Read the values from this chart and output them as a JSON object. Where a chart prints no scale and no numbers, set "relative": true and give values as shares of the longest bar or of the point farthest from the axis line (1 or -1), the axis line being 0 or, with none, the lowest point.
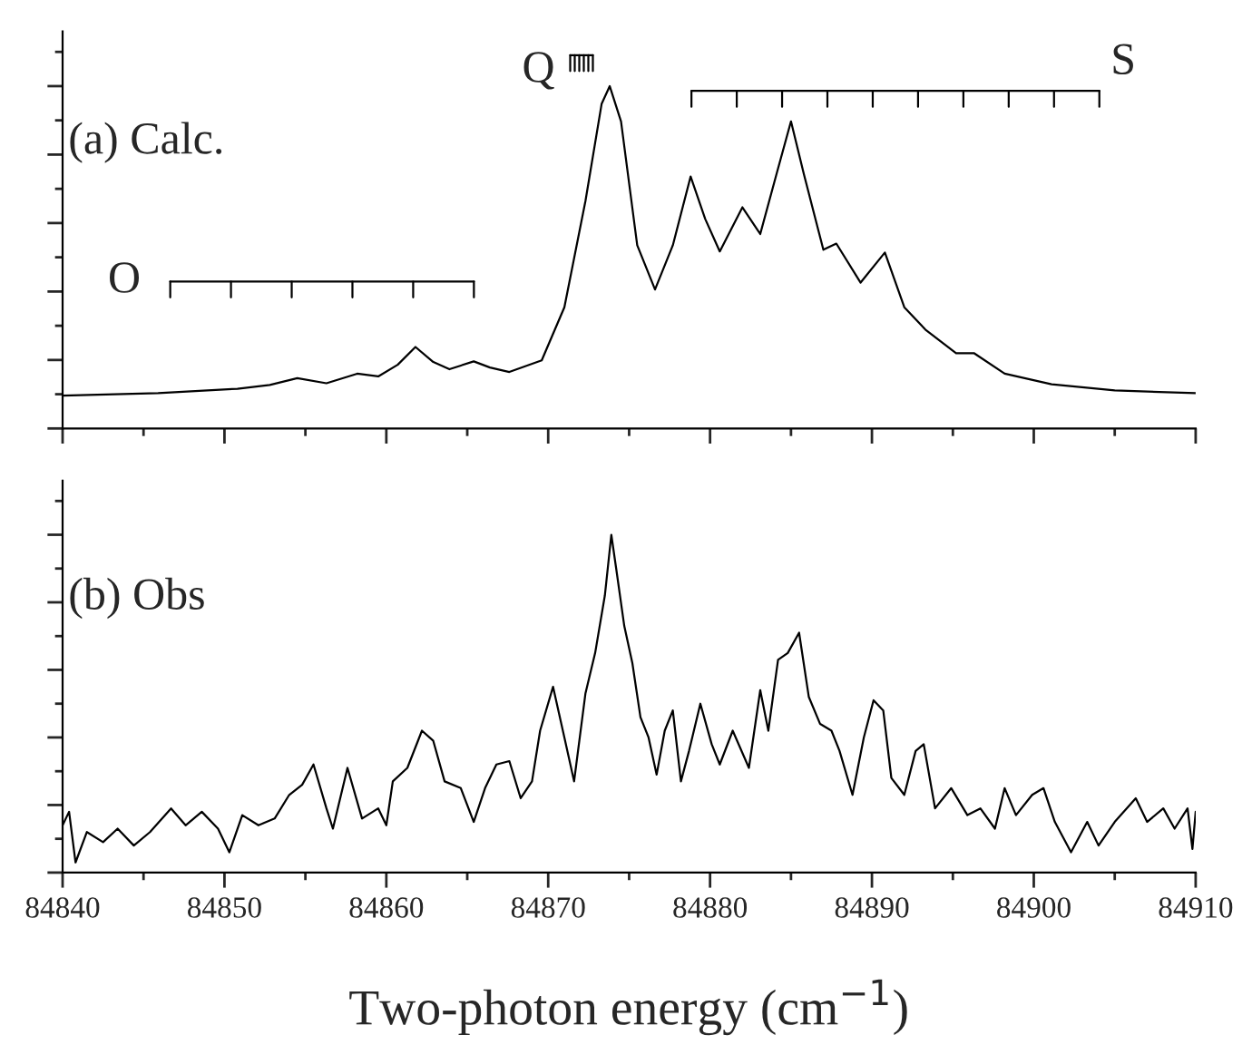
{
  "chart_data": [
    {
      "type": "line",
      "relative": true,
      "annotations": [
        "(a) Calc.",
        "O",
        "Q",
        "S"
      ],
      "xlim": [
        84840,
        84910
      ],
      "xticks": [
        84840,
        84850,
        84860,
        84870,
        84880,
        84890,
        84900,
        84910
      ],
      "tick_labels": false,
      "grid": false,
      "legend": false,
      "marker": "none",
      "line_style": "solid",
      "series": [
        {
          "color": "#000000",
          "x": [
            84840.0,
            84845.9,
            84850.8,
            84852.8,
            84854.5,
            84856.3,
            84858.2,
            84859.5,
            84860.7,
            84861.8,
            84862.9,
            84863.9,
            84865.4,
            84866.4,
            84867.6,
            84869.6,
            84871.0,
            84872.3,
            84873.3,
            84873.8,
            84874.5,
            84875.5,
            84876.6,
            84877.7,
            84878.8,
            84879.7,
            84880.6,
            84882.0,
            84883.1,
            84884.1,
            84885.0,
            84885.8,
            84887.0,
            84887.8,
            84889.3,
            84890.8,
            84892.0,
            84893.3,
            84895.2,
            84896.3,
            84898.2,
            84901.1,
            84905.0,
            84910.0
          ],
          "values": [
            0.096,
            0.103,
            0.116,
            0.127,
            0.147,
            0.132,
            0.16,
            0.152,
            0.186,
            0.238,
            0.194,
            0.173,
            0.196,
            0.178,
            0.165,
            0.199,
            0.354,
            0.664,
            0.948,
            1.0,
            0.897,
            0.535,
            0.406,
            0.535,
            0.736,
            0.612,
            0.517,
            0.646,
            0.568,
            0.742,
            0.897,
            0.742,
            0.522,
            0.54,
            0.426,
            0.514,
            0.354,
            0.289,
            0.22,
            0.22,
            0.16,
            0.129,
            0.111,
            0.103
          ]
        }
      ]
    },
    {
      "type": "line",
      "relative": true,
      "annotations": [
        "(b) Obs"
      ],
      "xlabel": "Two-photon energy (cm$^{−1}$)",
      "xlim": [
        84840,
        84910
      ],
      "xticks": [
        84840,
        84850,
        84860,
        84870,
        84880,
        84890,
        84900,
        84910
      ],
      "tick_labels": "x",
      "grid": false,
      "legend": false,
      "marker": "none",
      "line_style": "solid",
      "series": [
        {
          "color": "#000000",
          "x": [
            84840.0,
            84840.4,
            84840.8,
            84841.5,
            84842.5,
            84843.4,
            84844.4,
            84845.4,
            84846.7,
            84847.6,
            84848.6,
            84849.6,
            84850.3,
            84851.1,
            84852.1,
            84853.1,
            84854.0,
            84854.8,
            84855.5,
            84856.3,
            84856.7,
            84857.6,
            84858.5,
            84859.5,
            84860.0,
            84860.4,
            84861.3,
            84862.2,
            84862.9,
            84863.6,
            84864.6,
            84865.4,
            84866.1,
            84866.8,
            84867.6,
            84868.3,
            84869.0,
            84869.5,
            84870.3,
            84871.0,
            84871.6,
            84872.3,
            84872.9,
            84873.5,
            84873.9,
            84874.2,
            84874.7,
            84875.2,
            84875.7,
            84876.2,
            84876.7,
            84877.2,
            84877.7,
            84878.2,
            84878.7,
            84879.4,
            84880.1,
            84880.6,
            84881.4,
            84882.4,
            84883.1,
            84883.6,
            84884.2,
            84884.8,
            84885.5,
            84886.1,
            84886.8,
            84887.5,
            84888.0,
            84888.8,
            84889.5,
            84890.1,
            84890.7,
            84891.2,
            84892.0,
            84892.7,
            84893.2,
            84893.9,
            84894.9,
            84895.9,
            84896.7,
            84897.6,
            84898.2,
            84898.9,
            84899.9,
            84900.6,
            84901.3,
            84902.3,
            84903.3,
            84904.0,
            84905.0,
            84906.3,
            84907.0,
            84908.0,
            84908.7,
            84909.5,
            84909.8,
            84910.0
          ],
          "values": [
            0.14,
            0.18,
            0.03,
            0.12,
            0.09,
            0.13,
            0.08,
            0.12,
            0.19,
            0.14,
            0.18,
            0.13,
            0.06,
            0.17,
            0.14,
            0.16,
            0.23,
            0.26,
            0.32,
            0.19,
            0.13,
            0.31,
            0.16,
            0.19,
            0.14,
            0.27,
            0.31,
            0.42,
            0.39,
            0.27,
            0.25,
            0.15,
            0.25,
            0.32,
            0.33,
            0.22,
            0.27,
            0.42,
            0.55,
            0.4,
            0.27,
            0.53,
            0.65,
            0.82,
            1.0,
            0.9,
            0.73,
            0.62,
            0.46,
            0.4,
            0.29,
            0.42,
            0.48,
            0.27,
            0.36,
            0.5,
            0.38,
            0.32,
            0.42,
            0.31,
            0.54,
            0.42,
            0.63,
            0.65,
            0.71,
            0.52,
            0.44,
            0.42,
            0.36,
            0.23,
            0.4,
            0.51,
            0.48,
            0.28,
            0.23,
            0.36,
            0.38,
            0.19,
            0.25,
            0.17,
            0.19,
            0.13,
            0.25,
            0.17,
            0.23,
            0.25,
            0.15,
            0.06,
            0.15,
            0.08,
            0.15,
            0.22,
            0.15,
            0.19,
            0.13,
            0.19,
            0.07,
            0.18
          ]
        }
      ]
    }
  ]
}
